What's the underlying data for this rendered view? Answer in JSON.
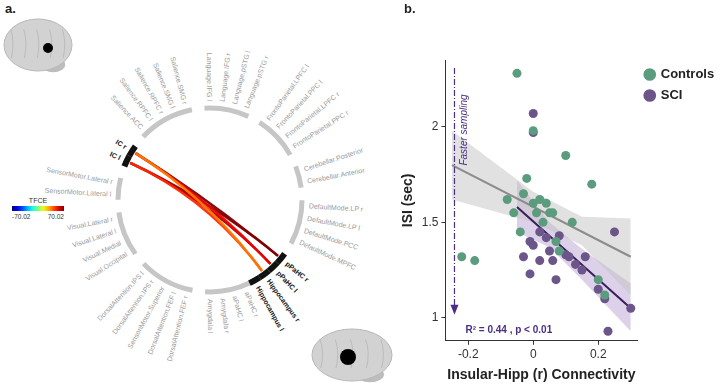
{
  "panel_labels": [
    "a.",
    "b."
  ],
  "diagram": {
    "ring": [
      [
        "IC l",
        "IC r"
      ],
      [
        "Salience.ACC",
        "Salience.RPFC l",
        "Salience.RPFC r",
        "Salience.SMG l",
        "Salience.SMG r"
      ],
      [
        "Language.IFG l",
        "Language.IFG r",
        "Language.pSTG l",
        "Language.pSTG r"
      ],
      [
        "FrontoParietal.LPFC l",
        "FrontoParietal.PPC l",
        "FrontoParietal.LPFC r",
        "FrontoParietal.PPC r"
      ],
      [
        "Cerebellar.Posterior",
        "Cerebellar.Anterior"
      ],
      [
        "DefaultMode.LP r",
        "DefaultMode.LP l",
        "DefaultMode.PCC",
        "DefaultMode.MPFC"
      ],
      [
        "pPaHC r",
        "pPaHC l",
        "Hippocampus r",
        "Hippocampus l",
        "aPaHC r",
        "aPaHC l",
        "Amygdala r",
        "Amygdala l"
      ],
      [
        "DorsalAttention.FEF r",
        "DorsalAttention.FEF l",
        "SensoriMotor.Superior",
        "DorsalAttention.IPS r",
        "DorsalAttention.IPS l"
      ],
      [
        "Visual.Occipital",
        "Visual.Medial",
        "Visual.Lateral l",
        "Visual.Lateral r"
      ],
      [
        "SensorMotor.Lateral l",
        "SensorMotor.Lateral r"
      ]
    ],
    "highlighted": [
      "IC l",
      "IC r",
      "pPaHC r",
      "pPaHC l",
      "Hippocampus r",
      "Hippocampus l"
    ],
    "links": [
      {
        "source": "IC l",
        "target": "pPaHC r",
        "value": 68
      },
      {
        "source": "IC l",
        "target": "pPaHC l",
        "value": 64
      },
      {
        "source": "IC r",
        "target": "pPaHC r",
        "value": 70
      },
      {
        "source": "IC r",
        "target": "pPaHC l",
        "value": 55
      },
      {
        "source": "IC l",
        "target": "Hippocampus r",
        "value": 47
      },
      {
        "source": "IC r",
        "target": "Hippocampus r",
        "value": 36
      }
    ],
    "colorbar": {
      "label": "TFCE",
      "range": [
        -70.02,
        70.02
      ]
    }
  },
  "chart_data": {
    "type": "scatter",
    "x_label": "Insular-Hipp (r) Connectivity",
    "y_label": "ISI (sec)",
    "xlim": [
      -0.27,
      0.32
    ],
    "ylim": [
      0.88,
      2.35
    ],
    "xticks": [
      -0.2,
      0,
      0.2
    ],
    "yticks": [
      1,
      1.5,
      2
    ],
    "grid": false,
    "legend": "top right",
    "annotations": {
      "stats": "R² = 0.44 , p < 0.01",
      "arrow_label": "Faster sampling"
    },
    "series": [
      {
        "name": "Controls",
        "color": "#5b9c7f",
        "marker": "circle",
        "x": [
          -0.22,
          -0.18,
          -0.08,
          -0.06,
          -0.05,
          -0.04,
          -0.03,
          -0.02,
          0.0,
          0.0,
          0.01,
          0.02,
          0.03,
          0.04,
          0.05,
          0.06,
          0.07,
          0.08,
          0.1,
          0.12,
          0.18,
          0.2,
          0.22
        ],
        "values": [
          1.32,
          1.3,
          1.62,
          1.55,
          2.28,
          1.45,
          1.65,
          1.73,
          1.6,
          1.98,
          1.55,
          1.62,
          1.5,
          1.6,
          1.55,
          1.55,
          1.4,
          1.35,
          1.85,
          1.5,
          1.7,
          1.2,
          1.12
        ],
        "fit": {
          "x": [
            -0.25,
            0.3
          ],
          "values": [
            1.8,
            1.32
          ],
          "color": "#8c8c8c"
        },
        "ci": {
          "x": [
            -0.25,
            0,
            0.15,
            0.3
          ],
          "lower": [
            1.62,
            1.5,
            1.38,
            1.12
          ],
          "upper": [
            1.98,
            1.66,
            1.53,
            1.52
          ],
          "color": "#c4c4c4"
        }
      },
      {
        "name": "SCI",
        "color": "#6b5589",
        "marker": "circle",
        "x": [
          -0.03,
          -0.01,
          -0.01,
          0.0,
          0.0,
          0.0,
          0.02,
          0.02,
          0.04,
          0.05,
          0.06,
          0.07,
          0.08,
          0.1,
          0.11,
          0.13,
          0.15,
          0.16,
          0.2,
          0.22,
          0.23,
          0.25,
          0.3
        ],
        "values": [
          1.32,
          1.4,
          1.23,
          2.07,
          1.97,
          1.38,
          1.3,
          1.45,
          1.42,
          1.35,
          1.3,
          1.2,
          1.43,
          1.33,
          1.32,
          1.28,
          1.25,
          1.32,
          1.15,
          1.1,
          0.93,
          1.45,
          1.05
        ],
        "fit": {
          "x": [
            -0.05,
            0.3
          ],
          "values": [
            1.58,
            1.05
          ],
          "color": "#3b1d5e"
        },
        "ci": {
          "x": [
            -0.05,
            0.05,
            0.15,
            0.3
          ],
          "lower": [
            1.45,
            1.37,
            1.2,
            0.93
          ],
          "upper": [
            1.72,
            1.5,
            1.36,
            1.18
          ],
          "color": "#b9a4d3"
        }
      }
    ]
  }
}
